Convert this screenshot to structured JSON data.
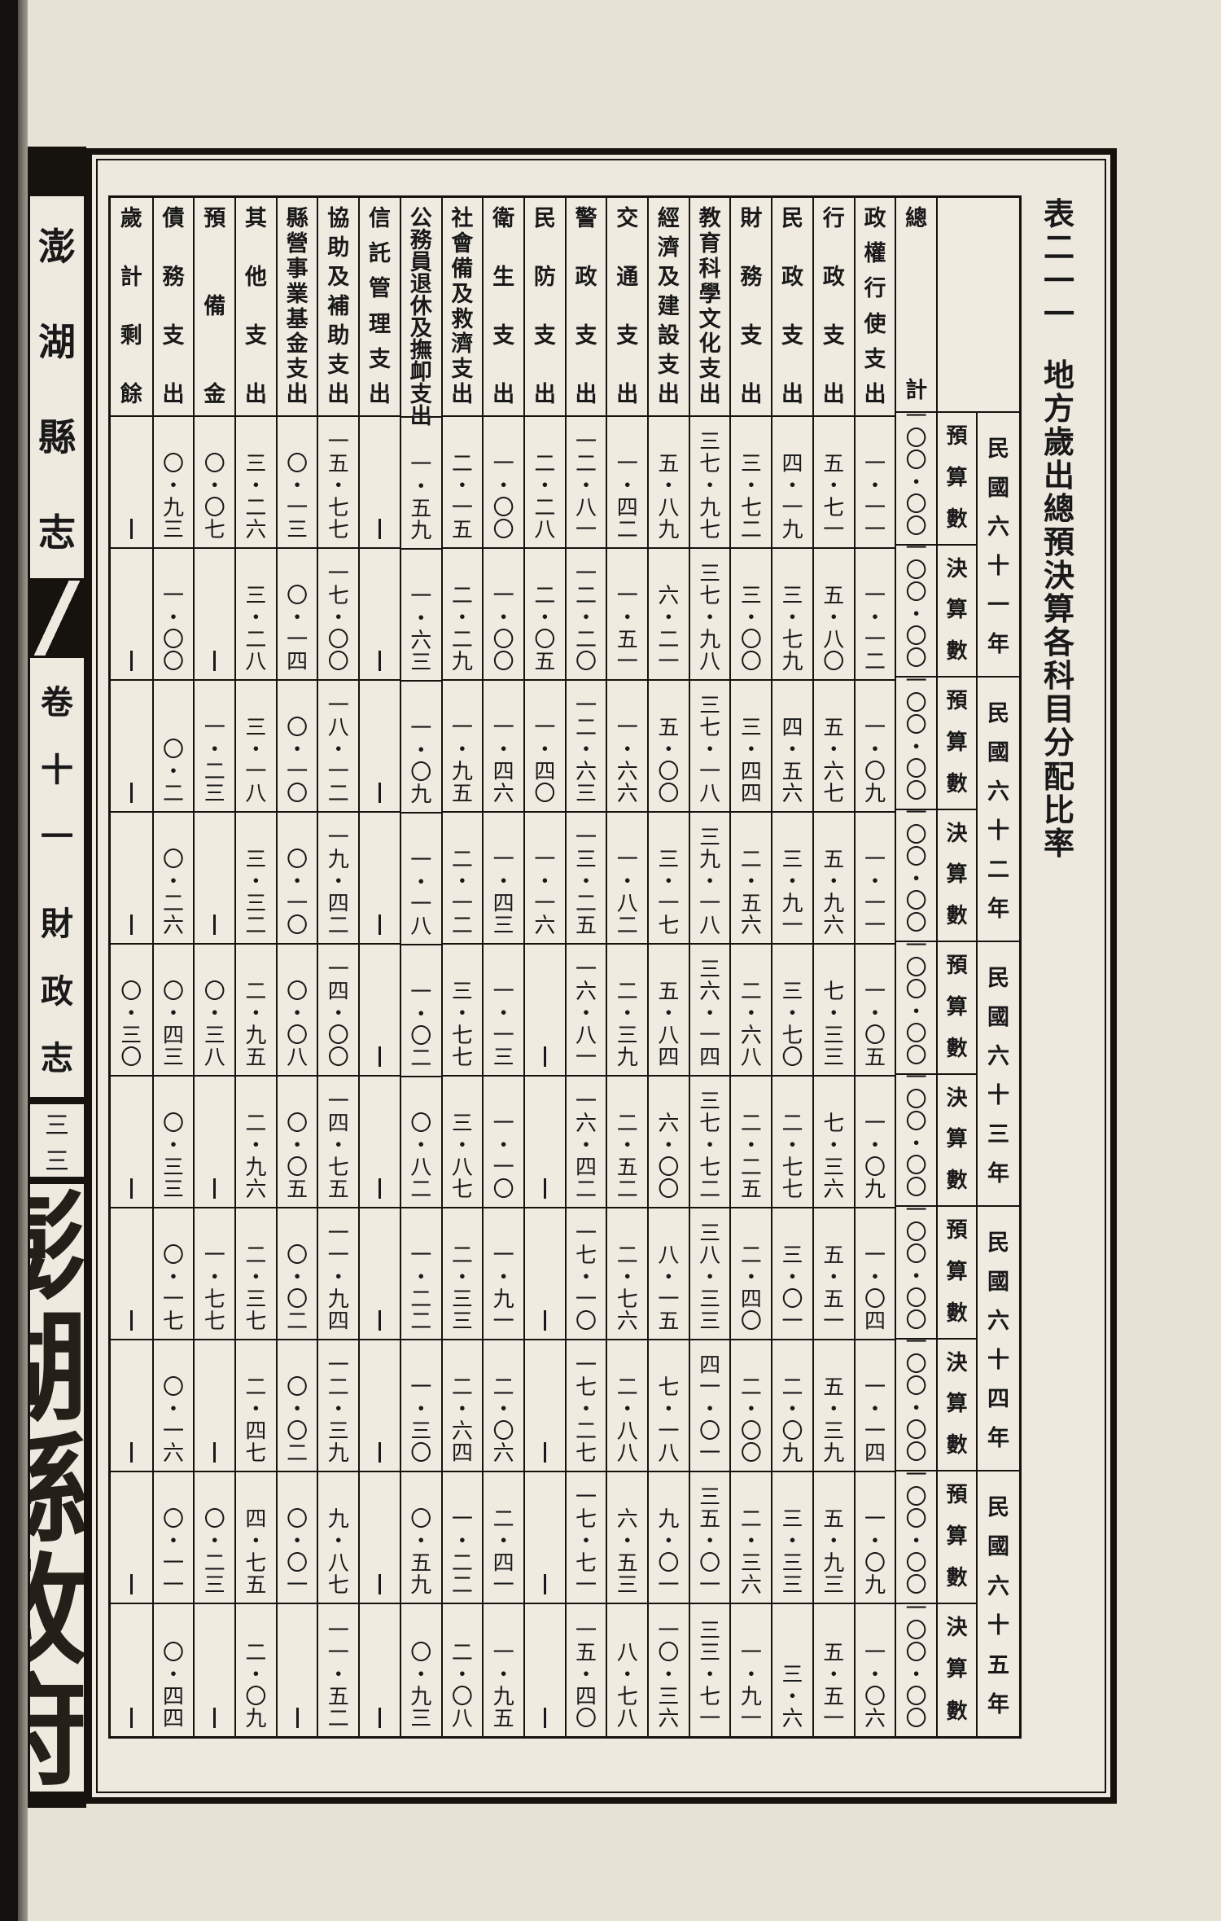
{
  "figure": {
    "table_no": "表二一一",
    "title": "地方歲出總預決算各科目分配比率"
  },
  "margin": {
    "book_title": "澎湖縣志",
    "volume": "卷十一　財政志",
    "page_number": "三三",
    "watermark": "澎湖縣政府"
  },
  "table": {
    "categories": [
      "總計",
      "政權行使支出",
      "行政支出",
      "民政支出",
      "財務支出",
      "教育科學文化支出",
      "經濟及建設支出",
      "交通支出",
      "警政支出",
      "民防支出",
      "衛生支出",
      "社會備及救濟支出",
      "公務員退休及撫卹支出",
      "信託管理支出",
      "協助及補助支出",
      "縣營事業基金支出",
      "其他支出",
      "預備金",
      "債務支出",
      "歲計剩餘"
    ],
    "year_groups": [
      "民國六十一年",
      "民國六十二年",
      "民國六十三年",
      "民國六十四年",
      "民國六十五年"
    ],
    "rows": [
      {
        "year": "民國六十一年",
        "type": "預算數",
        "values": [
          "一〇〇・〇〇",
          "一・一一",
          "五・七一",
          "四・一九",
          "三・七二",
          "三七・九七",
          "五・八九",
          "一・四二",
          "一二・八一",
          "二・二八",
          "一・〇〇",
          "二・一五",
          "一・五九",
          "—",
          "一五・七七",
          "〇・一三",
          "三・二六",
          "〇・〇七",
          "〇・九三",
          "—"
        ]
      },
      {
        "year": "民國六十一年",
        "type": "決算數",
        "values": [
          "一〇〇・〇〇",
          "一・一二",
          "五・八〇",
          "三・七九",
          "三・〇〇",
          "三七・九八",
          "六・二一",
          "一・五一",
          "一二・二〇",
          "二・〇五",
          "一・〇〇",
          "二・二九",
          "一・六三",
          "—",
          "一七・〇〇",
          "〇・一四",
          "三・二八",
          "—",
          "一・〇〇",
          "—"
        ]
      },
      {
        "year": "民國六十二年",
        "type": "預算數",
        "values": [
          "一〇〇・〇〇",
          "一・〇九",
          "五・六七",
          "四・五六",
          "三・四四",
          "三七・一八",
          "五・〇〇",
          "一・六六",
          "一二・六三",
          "一・四〇",
          "一・四六",
          "一・九五",
          "一・〇九",
          "—",
          "一八・一二",
          "〇・一〇",
          "三・一八",
          "一・二三",
          "〇・二",
          "—"
        ]
      },
      {
        "year": "民國六十二年",
        "type": "決算數",
        "values": [
          "一〇〇・〇〇",
          "一・一一",
          "五・九六",
          "三・九一",
          "二・五六",
          "三九・一八",
          "三・一七",
          "一・八二",
          "一三・二五",
          "一・一六",
          "一・四三",
          "二・一二",
          "一・一八",
          "—",
          "一九・四二",
          "〇・一〇",
          "三・三二",
          "—",
          "〇・二六",
          "—"
        ]
      },
      {
        "year": "民國六十三年",
        "type": "預算數",
        "values": [
          "一〇〇・〇〇",
          "一・〇五",
          "七・三三",
          "三・七〇",
          "二・六八",
          "三六・一四",
          "五・八四",
          "二・三九",
          "一六・八一",
          "—",
          "一・一三",
          "三・七七",
          "一・〇二",
          "—",
          "一四・〇〇",
          "〇・〇八",
          "二・九五",
          "〇・三八",
          "〇・四三",
          "〇・三〇"
        ]
      },
      {
        "year": "民國六十三年",
        "type": "決算數",
        "values": [
          "一〇〇・〇〇",
          "一・〇九",
          "七・三六",
          "二・七七",
          "二・二五",
          "三七・七二",
          "六・〇〇",
          "二・五二",
          "一六・四二",
          "—",
          "一・一〇",
          "三・八七",
          "〇・八二",
          "—",
          "一四・七五",
          "〇・〇五",
          "二・九六",
          "—",
          "〇・三三",
          "—"
        ]
      },
      {
        "year": "民國六十四年",
        "type": "預算數",
        "values": [
          "一〇〇・〇〇",
          "一・〇四",
          "五・五一",
          "三・〇一",
          "二・四〇",
          "三八・三三",
          "八・一五",
          "二・七六",
          "一七・一〇",
          "—",
          "一・九一",
          "二・三三",
          "一・二二",
          "—",
          "一一・九四",
          "〇・〇二",
          "二・三七",
          "一・七七",
          "〇・一七",
          "—"
        ]
      },
      {
        "year": "民國六十四年",
        "type": "決算數",
        "values": [
          "一〇〇・〇〇",
          "一・一四",
          "五・三九",
          "二・〇九",
          "二・〇〇",
          "四一・〇一",
          "七・一八",
          "二・八八",
          "一七・二七",
          "—",
          "二・〇六",
          "二・六四",
          "一・三〇",
          "—",
          "一二・三九",
          "〇・〇二",
          "二・四七",
          "—",
          "〇・一六",
          "—"
        ]
      },
      {
        "year": "民國六十五年",
        "type": "預算數",
        "values": [
          "一〇〇・〇〇",
          "一・〇九",
          "五・九三",
          "三・三三",
          "二・三六",
          "三五・〇一",
          "九・〇一",
          "六・五三",
          "一七・七一",
          "—",
          "二・四一",
          "一・二二",
          "〇・五九",
          "—",
          "九・八七",
          "〇・〇一",
          "四・七五",
          "〇・二三",
          "〇・一一",
          "—"
        ]
      },
      {
        "year": "民國六十五年",
        "type": "決算數",
        "values": [
          "一〇〇・〇〇",
          "一・〇六",
          "五・五一",
          "三・六",
          "一・九一",
          "三三・七一",
          "一〇・三六",
          "八・七八",
          "一五・四〇",
          "—",
          "一・九五",
          "二・〇八",
          "〇・九三",
          "—",
          "一一・五二",
          "—",
          "二・〇九",
          "—",
          "〇・四四",
          "—"
        ]
      }
    ]
  },
  "colors": {
    "ink": "#191919",
    "paper": "#eee9df",
    "gutter": "#16130f"
  }
}
